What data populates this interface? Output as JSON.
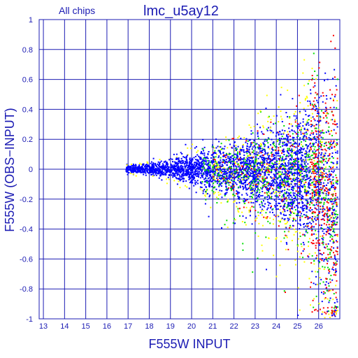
{
  "chart_data": {
    "type": "scatter",
    "title": "lmc_u5ay12",
    "subtitle": "All chips",
    "xlabel": "F555W INPUT",
    "ylabel": "F555W (OBS−INPUT)",
    "xlim": [
      12.8,
      27.0
    ],
    "ylim": [
      -1,
      1
    ],
    "x_ticks": [
      "13",
      "14",
      "15",
      "16",
      "17",
      "18",
      "19",
      "20",
      "21",
      "22",
      "23",
      "24",
      "25",
      "26"
    ],
    "y_ticks": [
      "1",
      "0.8",
      "0.6",
      "0.4",
      "0.2",
      "0",
      "-0.2",
      "-0.4",
      "-0.6",
      "-0.8",
      "-1"
    ],
    "x_tick_values": [
      13,
      14,
      15,
      16,
      17,
      18,
      19,
      20,
      21,
      22,
      23,
      24,
      25,
      26
    ],
    "y_tick_values": [
      1,
      0.8,
      0.6,
      0.4,
      0.2,
      0,
      -0.2,
      -0.4,
      -0.6,
      -0.8,
      -1
    ],
    "grid": true,
    "series_colors": [
      "#0000ff",
      "#00dd00",
      "#ff0000",
      "#ffff00"
    ],
    "x_range_of_points": [
      16.9,
      26.9
    ],
    "dense_core_y": 0
  },
  "colors": {
    "axis": "#1b1bb3",
    "grid": "#1b1bb3",
    "background": "#ffffff"
  }
}
